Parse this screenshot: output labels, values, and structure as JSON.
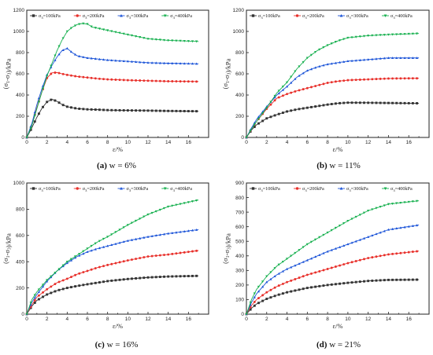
{
  "legend_labels": [
    "σ3=100kPa",
    "σ3=200kPa",
    "σ3=300kPa",
    "σ3=400kPa"
  ],
  "series_colors": [
    "#333333",
    "#e8302b",
    "#1d55d8",
    "#17b04f"
  ],
  "series_markers": [
    "square",
    "circle",
    "triangle-up",
    "triangle-down"
  ],
  "chart_data": [
    {
      "type": "line",
      "caption_letter": "(a)",
      "caption": "w = 6%",
      "xlabel": "ε/%",
      "ylabel": "(σ1-σ3)/kPa",
      "xlim": [
        0,
        18
      ],
      "ylim": [
        0,
        1200
      ],
      "xticks": [
        0,
        2,
        4,
        6,
        8,
        10,
        12,
        14,
        16
      ],
      "yticks": [
        0,
        200,
        400,
        600,
        800,
        1000,
        1200
      ],
      "legend_position": "top",
      "grid": false,
      "series": [
        {
          "name": "σ3=100kPa",
          "x": [
            0,
            0.5,
            1.0,
            1.5,
            2.0,
            2.5,
            3.0,
            3.5,
            4.0,
            5.0,
            6.0,
            7.0,
            8.0,
            10.0,
            12.0,
            14.0,
            17.0
          ],
          "y": [
            0,
            90,
            190,
            275,
            335,
            360,
            340,
            310,
            290,
            272,
            265,
            262,
            258,
            255,
            253,
            250,
            247
          ]
        },
        {
          "name": "σ3=200kPa",
          "x": [
            0,
            0.5,
            1.0,
            1.5,
            2.0,
            2.5,
            3.0,
            3.5,
            4.0,
            5.0,
            6.0,
            7.0,
            8.0,
            10.0,
            12.0,
            14.0,
            17.0
          ],
          "y": [
            0,
            120,
            280,
            430,
            560,
            610,
            612,
            600,
            590,
            575,
            565,
            555,
            548,
            540,
            535,
            530,
            527
          ]
        },
        {
          "name": "σ3=300kPa",
          "x": [
            0,
            0.5,
            1.0,
            1.5,
            2.0,
            2.5,
            3.0,
            3.5,
            4.0,
            4.5,
            5.0,
            6.0,
            7.0,
            8.0,
            10.0,
            12.0,
            14.0,
            17.0
          ],
          "y": [
            0,
            130,
            310,
            460,
            590,
            680,
            760,
            820,
            840,
            800,
            770,
            750,
            740,
            730,
            718,
            705,
            700,
            695
          ]
        },
        {
          "name": "σ3=400kPa",
          "x": [
            0,
            0.5,
            1.0,
            1.5,
            2.0,
            2.5,
            3.0,
            3.5,
            4.0,
            4.5,
            5.0,
            5.5,
            6.0,
            6.5,
            7.0,
            8.0,
            10.0,
            12.0,
            14.0,
            17.0
          ],
          "y": [
            0,
            110,
            270,
            430,
            580,
            700,
            820,
            920,
            1000,
            1040,
            1065,
            1075,
            1070,
            1040,
            1030,
            1010,
            970,
            930,
            915,
            905
          ]
        }
      ]
    },
    {
      "type": "line",
      "caption_letter": "(b)",
      "caption": "w = 11%",
      "xlabel": "ε/%",
      "ylabel": "(σ1-σ3)/kPa",
      "xlim": [
        0,
        18
      ],
      "ylim": [
        0,
        1200
      ],
      "xticks": [
        0,
        2,
        4,
        6,
        8,
        10,
        12,
        14,
        16
      ],
      "yticks": [
        0,
        200,
        400,
        600,
        800,
        1000,
        1200
      ],
      "legend_position": "top",
      "grid": false,
      "series": [
        {
          "name": "σ3=100kPa",
          "x": [
            0,
            0.5,
            1.0,
            2.0,
            3.0,
            4.0,
            5.0,
            6.0,
            7.0,
            8.0,
            9.0,
            10.0,
            12.0,
            14.0,
            17.0
          ],
          "y": [
            0,
            70,
            120,
            180,
            215,
            245,
            265,
            280,
            295,
            310,
            322,
            328,
            327,
            325,
            322
          ]
        },
        {
          "name": "σ3=200kPa",
          "x": [
            0,
            0.5,
            1.0,
            2.0,
            3.0,
            4.0,
            5.0,
            6.0,
            7.0,
            8.0,
            9.0,
            10.0,
            12.0,
            14.0,
            17.0
          ],
          "y": [
            0,
            80,
            150,
            270,
            370,
            410,
            440,
            465,
            490,
            515,
            530,
            540,
            548,
            556,
            558
          ]
        },
        {
          "name": "σ3=300kPa",
          "x": [
            0,
            0.5,
            1.0,
            2.0,
            3.0,
            4.0,
            5.0,
            6.0,
            7.0,
            8.0,
            9.0,
            10.0,
            12.0,
            14.0,
            17.0
          ],
          "y": [
            0,
            90,
            170,
            290,
            400,
            480,
            570,
            630,
            665,
            690,
            705,
            720,
            735,
            750,
            750
          ]
        },
        {
          "name": "σ3=400kPa",
          "x": [
            0,
            0.5,
            1.0,
            2.0,
            3.0,
            4.0,
            5.0,
            6.0,
            7.0,
            8.0,
            9.0,
            10.0,
            12.0,
            14.0,
            17.0
          ],
          "y": [
            0,
            80,
            150,
            280,
            420,
            520,
            650,
            750,
            820,
            870,
            910,
            940,
            960,
            970,
            980
          ]
        }
      ]
    },
    {
      "type": "line",
      "caption_letter": "(c)",
      "caption": "w = 16%",
      "xlabel": "ε/%",
      "ylabel": "(σ1-σ3)/kPa",
      "xlim": [
        0,
        18
      ],
      "ylim": [
        0,
        1000
      ],
      "xticks": [
        0,
        2,
        4,
        6,
        8,
        10,
        12,
        14,
        16
      ],
      "yticks": [
        0,
        200,
        400,
        600,
        800,
        1000
      ],
      "legend_position": "top",
      "grid": false,
      "series": [
        {
          "name": "σ3=100kPa",
          "x": [
            0,
            0.5,
            1.0,
            2.0,
            3.0,
            4.0,
            5.0,
            6.0,
            7.0,
            8.0,
            10.0,
            12.0,
            14.0,
            17.0
          ],
          "y": [
            0,
            60,
            105,
            150,
            180,
            200,
            215,
            228,
            240,
            252,
            268,
            280,
            287,
            292
          ]
        },
        {
          "name": "σ3=200kPa",
          "x": [
            0,
            0.5,
            1.0,
            2.0,
            3.0,
            4.0,
            5.0,
            6.0,
            7.0,
            8.0,
            10.0,
            12.0,
            14.0,
            17.0
          ],
          "y": [
            0,
            70,
            130,
            190,
            240,
            270,
            305,
            330,
            355,
            375,
            410,
            440,
            455,
            485
          ]
        },
        {
          "name": "σ3=300kPa",
          "x": [
            0,
            0.5,
            1.0,
            2.0,
            3.0,
            4.0,
            5.0,
            6.0,
            7.0,
            8.0,
            10.0,
            12.0,
            14.0,
            17.0
          ],
          "y": [
            0,
            90,
            150,
            250,
            330,
            390,
            440,
            475,
            500,
            520,
            560,
            590,
            615,
            645
          ]
        },
        {
          "name": "σ3=400kPa",
          "x": [
            0,
            0.5,
            1.0,
            2.0,
            3.0,
            4.0,
            5.0,
            6.0,
            7.0,
            8.0,
            10.0,
            12.0,
            14.0,
            17.0
          ],
          "y": [
            0,
            110,
            170,
            260,
            330,
            400,
            450,
            500,
            550,
            590,
            680,
            760,
            820,
            870
          ]
        }
      ]
    },
    {
      "type": "line",
      "caption_letter": "(d)",
      "caption": "w = 21%",
      "xlabel": "ε/%",
      "ylabel": "(σ1-σ3)/kPa",
      "xlim": [
        0,
        18
      ],
      "ylim": [
        0,
        900
      ],
      "xticks": [
        0,
        2,
        4,
        6,
        8,
        10,
        12,
        14,
        16
      ],
      "yticks": [
        0,
        100,
        200,
        300,
        400,
        500,
        600,
        700,
        800,
        900
      ],
      "legend_position": "top",
      "grid": false,
      "series": [
        {
          "name": "σ3=100kPa",
          "x": [
            0,
            0.5,
            1.0,
            2.0,
            3.0,
            4.0,
            5.0,
            6.0,
            7.0,
            8.0,
            10.0,
            12.0,
            14.0,
            17.0
          ],
          "y": [
            0,
            40,
            70,
            105,
            130,
            150,
            165,
            180,
            190,
            200,
            215,
            228,
            235,
            237
          ]
        },
        {
          "name": "σ3=200kPa",
          "x": [
            0,
            0.5,
            1.0,
            2.0,
            3.0,
            4.0,
            5.0,
            6.0,
            7.0,
            8.0,
            10.0,
            12.0,
            14.0,
            17.0
          ],
          "y": [
            0,
            60,
            100,
            150,
            190,
            220,
            245,
            270,
            290,
            310,
            350,
            385,
            410,
            433
          ]
        },
        {
          "name": "σ3=300kPa",
          "x": [
            0,
            0.5,
            1.0,
            2.0,
            3.0,
            4.0,
            5.0,
            6.0,
            7.0,
            8.0,
            10.0,
            12.0,
            14.0,
            17.0
          ],
          "y": [
            0,
            80,
            140,
            220,
            270,
            310,
            340,
            370,
            400,
            430,
            480,
            530,
            580,
            612
          ]
        },
        {
          "name": "σ3=400kPa",
          "x": [
            0,
            0.5,
            1.0,
            2.0,
            3.0,
            4.0,
            5.0,
            6.0,
            7.0,
            8.0,
            10.0,
            12.0,
            14.0,
            17.0
          ],
          "y": [
            0,
            100,
            170,
            260,
            330,
            380,
            430,
            480,
            520,
            560,
            640,
            710,
            755,
            778
          ]
        }
      ]
    }
  ]
}
